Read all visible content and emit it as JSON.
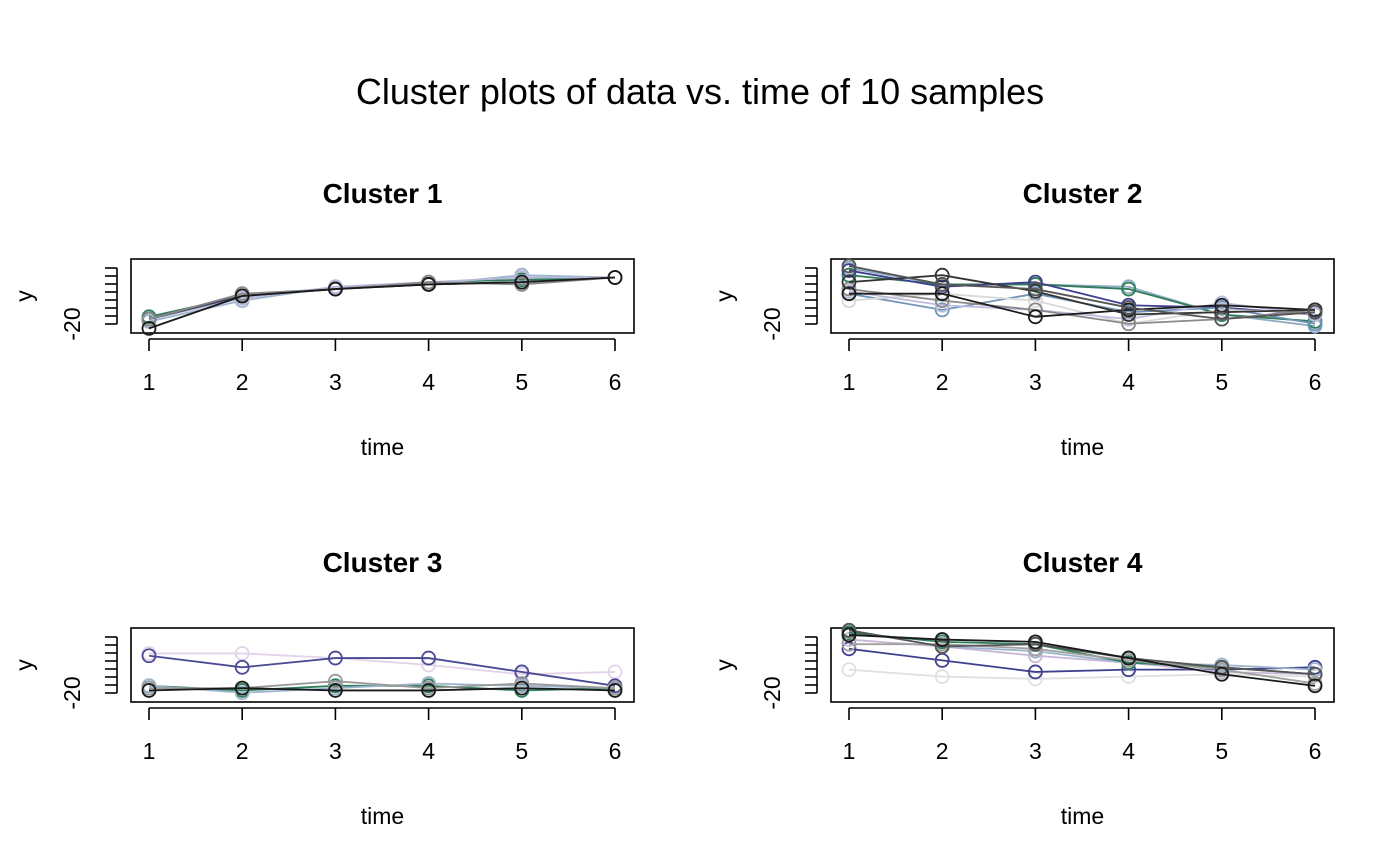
{
  "figure": {
    "title": "Cluster plots of data vs. time of 10  samples"
  },
  "chart_data": [
    {
      "type": "line",
      "title": "Cluster 1",
      "xlabel": "time",
      "ylabel": "y",
      "x": [
        1,
        2,
        3,
        4,
        5,
        6
      ],
      "xticks": [
        "1",
        "2",
        "3",
        "4",
        "5",
        "6"
      ],
      "yticks": [
        "-20"
      ],
      "ylim": [
        -22,
        10
      ],
      "grid": false,
      "series": [
        {
          "color": "#2e7d5b",
          "values": [
            -15,
            -6,
            -3,
            0,
            1,
            2
          ]
        },
        {
          "color": "#9db5cc",
          "values": [
            -17,
            -8,
            -2,
            -1,
            3,
            2
          ]
        },
        {
          "color": "#b9b9dd",
          "values": [
            -16,
            -7,
            -2,
            0,
            2,
            2
          ]
        },
        {
          "color": "#444466",
          "values": [
            -16,
            -6,
            -3,
            -1,
            0,
            2
          ]
        },
        {
          "color": "#888888",
          "values": [
            -16,
            -5,
            -3,
            0,
            -1,
            2
          ]
        },
        {
          "color": "#1a1a1a",
          "values": [
            -20,
            -6,
            -3,
            -1,
            0,
            2
          ]
        }
      ]
    },
    {
      "type": "line",
      "title": "Cluster 2",
      "xlabel": "time",
      "ylabel": "y",
      "x": [
        1,
        2,
        3,
        4,
        5,
        6
      ],
      "xticks": [
        "1",
        "2",
        "3",
        "4",
        "5",
        "6"
      ],
      "yticks": [
        "-20"
      ],
      "ylim": [
        -22,
        10
      ],
      "grid": false,
      "series": [
        {
          "color": "#8eabc2",
          "values": [
            6,
            -1,
            -1,
            -2,
            -14,
            -19
          ]
        },
        {
          "color": "#2e7d5b",
          "values": [
            3,
            -1,
            -1,
            -3,
            -14,
            -17
          ]
        },
        {
          "color": "#3f3f8f",
          "values": [
            5,
            -2,
            0,
            -10,
            -11,
            -14
          ]
        },
        {
          "color": "#6f94b8",
          "values": [
            -5,
            -12,
            -5,
            -13,
            -11,
            -18
          ]
        },
        {
          "color": "#d8d8d8",
          "values": [
            -8,
            -5,
            -8,
            -18,
            -12,
            -13
          ]
        },
        {
          "color": "#bdbde0",
          "values": [
            -4,
            -10,
            -12,
            -16,
            -9,
            -14
          ]
        },
        {
          "color": "#8a8a8a",
          "values": [
            -3,
            -8,
            -12,
            -18,
            -16,
            -12
          ]
        },
        {
          "color": "#1a1a1a",
          "values": [
            -5,
            -5,
            -15,
            -12,
            -10,
            -12
          ]
        },
        {
          "color": "#333333",
          "values": [
            0,
            3,
            -4,
            -14,
            -13,
            -12
          ]
        },
        {
          "color": "#555555",
          "values": [
            7,
            -1,
            -3,
            -11,
            -16,
            -13
          ]
        }
      ]
    },
    {
      "type": "line",
      "title": "Cluster 3",
      "xlabel": "time",
      "ylabel": "y",
      "x": [
        1,
        2,
        3,
        4,
        5,
        6
      ],
      "xticks": [
        "1",
        "2",
        "3",
        "4",
        "5",
        "6"
      ],
      "yticks": [
        "-20"
      ],
      "ylim": [
        -22,
        10
      ],
      "grid": false,
      "series": [
        {
          "color": "#e3d3ea",
          "values": [
            -1,
            -1,
            -3,
            -6,
            -10,
            -9
          ]
        },
        {
          "color": "#4a4a94",
          "values": [
            -2,
            -7,
            -3,
            -3,
            -9,
            -15
          ]
        },
        {
          "color": "#2e7d5b",
          "values": [
            -15,
            -17,
            -15,
            -15,
            -17,
            -16
          ]
        },
        {
          "color": "#9db5cc",
          "values": [
            -15,
            -18,
            -16,
            -14,
            -15,
            -16
          ]
        },
        {
          "color": "#999999",
          "values": [
            -16,
            -16,
            -13,
            -16,
            -14,
            -16
          ]
        },
        {
          "color": "#1a1a1a",
          "values": [
            -17,
            -16,
            -17,
            -17,
            -16,
            -17
          ]
        }
      ]
    },
    {
      "type": "line",
      "title": "Cluster 4",
      "xlabel": "time",
      "ylabel": "y",
      "x": [
        1,
        2,
        3,
        4,
        5,
        6
      ],
      "xticks": [
        "1",
        "2",
        "3",
        "4",
        "5",
        "6"
      ],
      "yticks": [
        "-20"
      ],
      "ylim": [
        -22,
        10
      ],
      "grid": false,
      "series": [
        {
          "color": "#e0e0e0",
          "values": [
            -8,
            -11,
            -12,
            -11,
            -10,
            -11
          ]
        },
        {
          "color": "#3f3f8f",
          "values": [
            1,
            -4,
            -9,
            -8,
            -8,
            -7
          ]
        },
        {
          "color": "#c8b8d8",
          "values": [
            5,
            2,
            -2,
            -5,
            -9,
            -10
          ]
        },
        {
          "color": "#9db5cc",
          "values": [
            9,
            2,
            0,
            -5,
            -6,
            -8
          ]
        },
        {
          "color": "#2e7d5b",
          "values": [
            8,
            4,
            3,
            -5,
            -7,
            -10
          ]
        },
        {
          "color": "#a0a0a0",
          "values": [
            3,
            3,
            1,
            -4,
            -8,
            -14
          ]
        },
        {
          "color": "#555555",
          "values": [
            9,
            2,
            3,
            -3,
            -7,
            -10
          ]
        },
        {
          "color": "#1a1a1a",
          "values": [
            7,
            5,
            4,
            -3,
            -10,
            -15
          ]
        }
      ]
    }
  ]
}
